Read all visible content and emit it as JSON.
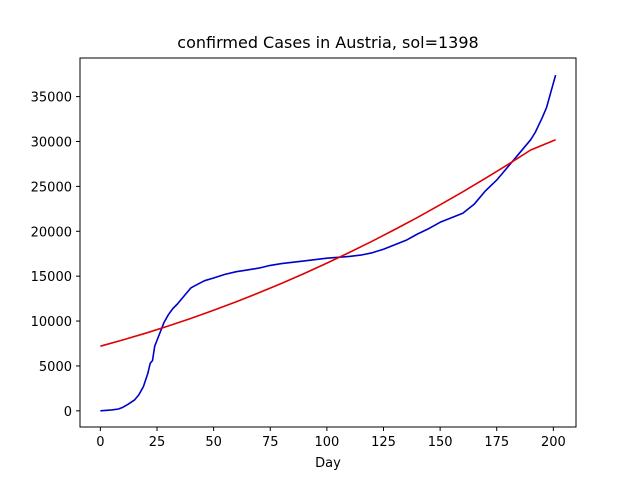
{
  "chart_data": {
    "type": "line",
    "title": "confirmed Cases in Austria, sol=1398",
    "xlabel": "Day",
    "ylabel": "",
    "xlim": [
      -9,
      210
    ],
    "ylim": [
      -1800,
      39300
    ],
    "xticks": [
      0,
      25,
      50,
      75,
      100,
      125,
      150,
      175,
      200
    ],
    "yticks": [
      0,
      5000,
      10000,
      15000,
      20000,
      25000,
      30000,
      35000
    ],
    "grid": false,
    "series": [
      {
        "color": "#0000cc",
        "x": [
          0,
          5,
          8,
          10,
          12,
          15,
          17,
          19,
          21,
          22,
          23,
          24,
          26,
          28,
          30,
          32,
          34,
          36,
          38,
          40,
          43,
          46,
          50,
          55,
          60,
          65,
          70,
          75,
          80,
          90,
          100,
          110,
          115,
          120,
          125,
          130,
          135,
          140,
          145,
          150,
          155,
          160,
          165,
          170,
          175,
          180,
          185,
          190,
          192,
          195,
          197,
          199,
          201
        ],
        "y": [
          0,
          100,
          200,
          400,
          700,
          1200,
          1800,
          2700,
          4200,
          5300,
          5600,
          7200,
          8500,
          9800,
          10700,
          11400,
          11900,
          12500,
          13100,
          13700,
          14100,
          14500,
          14800,
          15200,
          15500,
          15700,
          15900,
          16200,
          16400,
          16700,
          17000,
          17200,
          17350,
          17600,
          18000,
          18500,
          19000,
          19700,
          20300,
          21000,
          21500,
          22000,
          23000,
          24500,
          25700,
          27200,
          28700,
          30200,
          31000,
          32600,
          33800,
          35600,
          37400
        ]
      },
      {
        "color": "#e00000",
        "x": [
          0,
          10,
          20,
          30,
          40,
          50,
          60,
          70,
          80,
          90,
          100,
          110,
          120,
          130,
          140,
          150,
          160,
          170,
          180,
          190,
          201
        ],
        "y": [
          7200,
          7900,
          8650,
          9450,
          10300,
          11200,
          12150,
          13150,
          14200,
          15300,
          16450,
          17650,
          18900,
          20200,
          21550,
          22950,
          24400,
          25900,
          27450,
          29050,
          30200
        ]
      }
    ]
  }
}
